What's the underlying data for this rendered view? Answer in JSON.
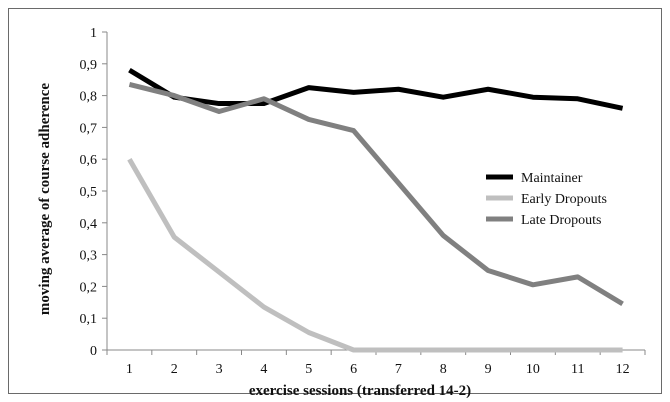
{
  "chart_data": {
    "type": "line",
    "title": "",
    "xlabel": "exercise sessions (transferred 14-2)",
    "ylabel": "moving average of course adherence",
    "x": [
      1,
      2,
      3,
      4,
      5,
      6,
      7,
      8,
      9,
      10,
      11,
      12
    ],
    "xlim": [
      0.5,
      12.5
    ],
    "ylim": [
      0,
      1
    ],
    "yticks": [
      "0",
      "0,1",
      "0,2",
      "0,3",
      "0,4",
      "0,5",
      "0,6",
      "0,7",
      "0,8",
      "0,9",
      "1"
    ],
    "grid": false,
    "legend_position": "right",
    "series": [
      {
        "name": "Maintainer",
        "color": "#000000",
        "values": [
          0.88,
          0.795,
          0.775,
          0.775,
          0.825,
          0.81,
          0.82,
          0.795,
          0.82,
          0.795,
          0.79,
          0.76
        ]
      },
      {
        "name": "Early Dropouts",
        "color": "#bfbfbf",
        "values": [
          0.6,
          0.355,
          0.245,
          0.135,
          0.055,
          0.0,
          0.0,
          0.0,
          0.0,
          0.0,
          0.0,
          0.0
        ]
      },
      {
        "name": "Late Dropouts",
        "color": "#808080",
        "values": [
          0.835,
          0.8,
          0.75,
          0.79,
          0.725,
          0.69,
          0.525,
          0.36,
          0.25,
          0.205,
          0.23,
          0.145
        ]
      }
    ]
  }
}
